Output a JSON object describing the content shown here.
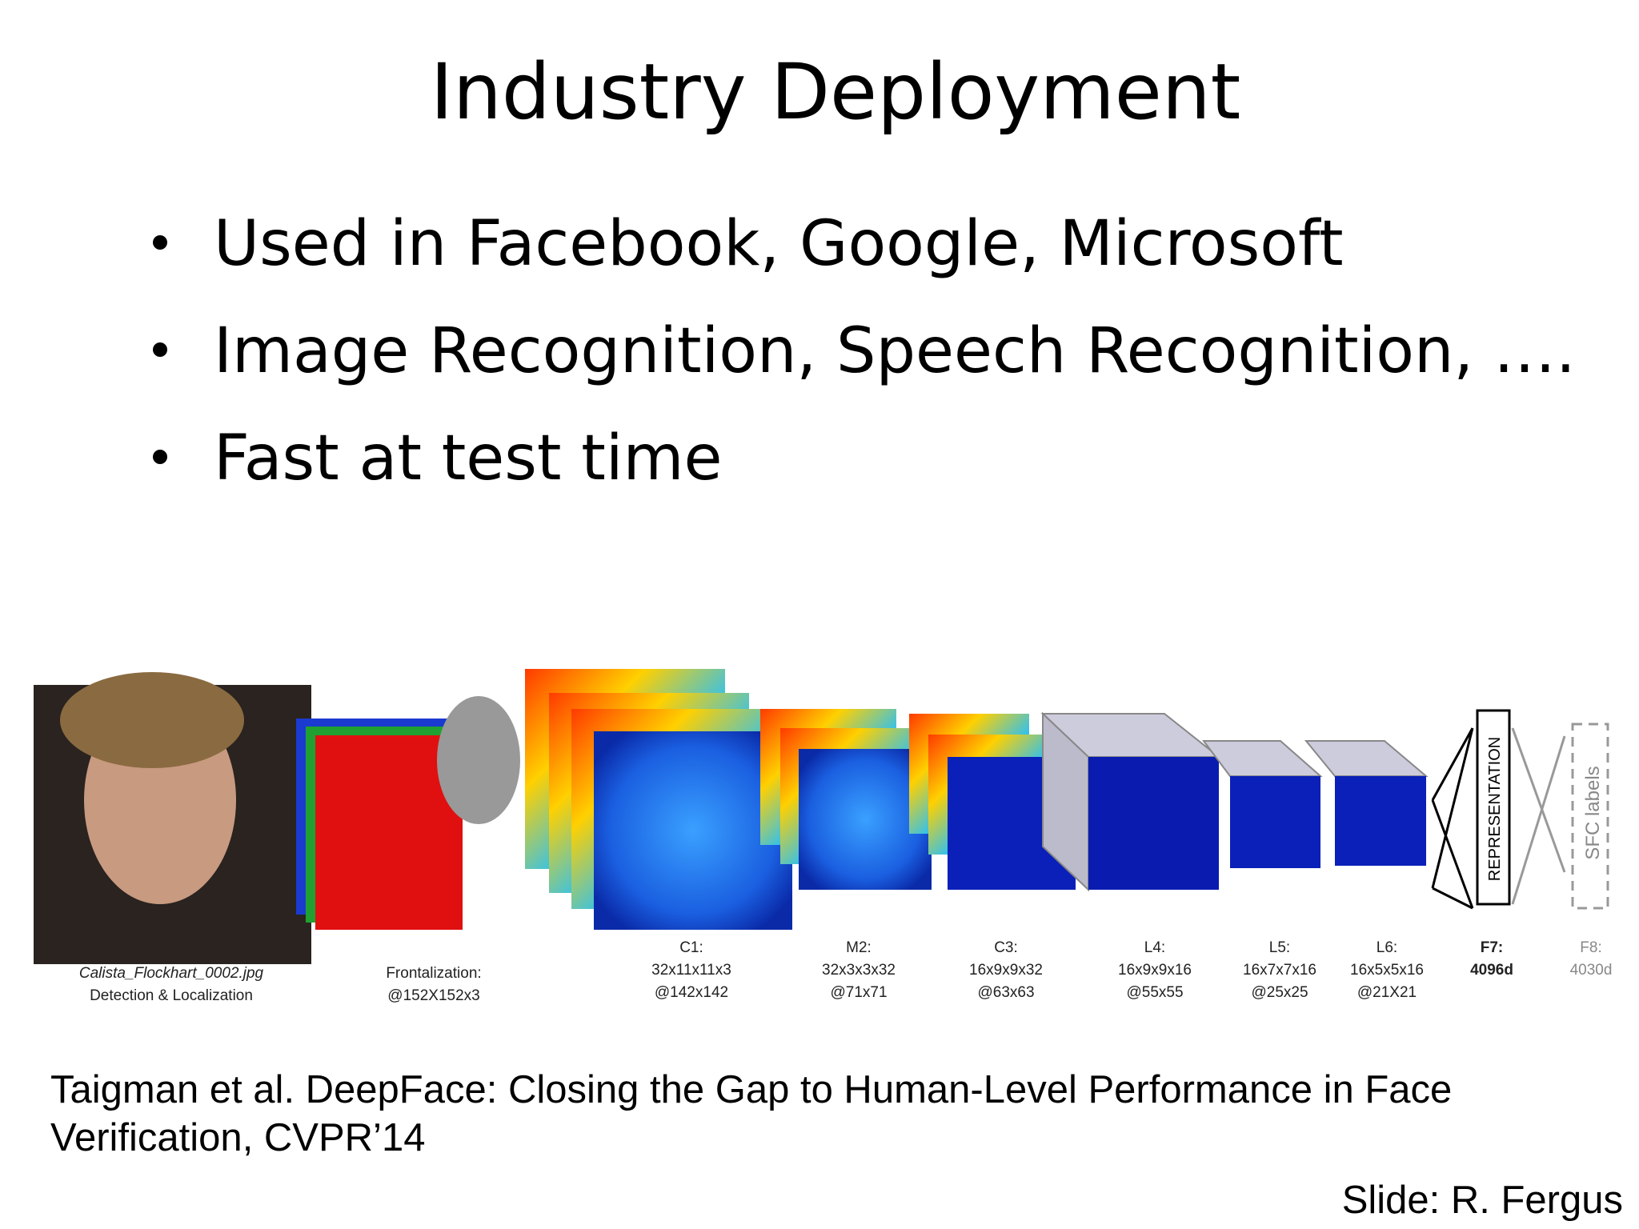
{
  "title": "Industry Deployment",
  "bullets": [
    "Used in Facebook, Google, Microsoft",
    "Image Recognition, Speech Recognition, ….",
    "Fast at test time"
  ],
  "figure": {
    "stages": [
      {
        "lines": [
          "Calista_Flockhart_0002.jpg",
          "Detection & Localization"
        ]
      },
      {
        "lines": [
          "Frontalization:",
          "@152X152x3"
        ]
      },
      {
        "lines": [
          "C1:",
          "32x11x11x3",
          "@142x142"
        ]
      },
      {
        "lines": [
          "M2:",
          "32x3x3x32",
          "@71x71"
        ]
      },
      {
        "lines": [
          "C3:",
          "16x9x9x32",
          "@63x63"
        ]
      },
      {
        "lines": [
          "L4:",
          "16x9x9x16",
          "@55x55"
        ]
      },
      {
        "lines": [
          "L5:",
          "16x7x7x16",
          "@25x25"
        ]
      },
      {
        "lines": [
          "L6:",
          "16x5x5x16",
          "@21X21"
        ]
      },
      {
        "lines": [
          "F7:",
          "4096d"
        ]
      },
      {
        "lines": [
          "F8:",
          "4030d"
        ]
      }
    ],
    "representation": "REPRESENTATION",
    "sfc": "SFC labels"
  },
  "citation": [
    "Taigman et al. DeepFace: Closing the Gap to Human-Level Performance in Face",
    "Verification, CVPR’14"
  ],
  "credit": "Slide: R. Fergus"
}
